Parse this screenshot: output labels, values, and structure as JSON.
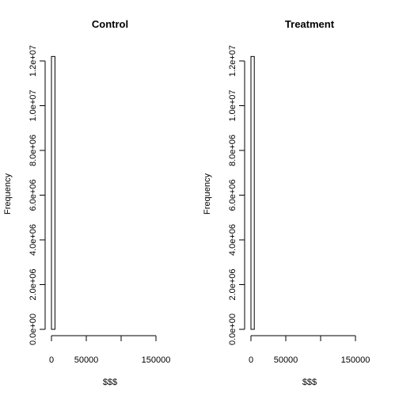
{
  "chart_data": [
    {
      "type": "bar",
      "title": "Control",
      "xlabel": "$$$",
      "ylabel": "Frequency",
      "xlim": [
        0,
        165000
      ],
      "ylim": [
        0,
        12250000
      ],
      "x_ticks": [
        0,
        50000,
        100000,
        150000
      ],
      "x_tick_labels": [
        "0",
        "50000",
        "",
        "150000"
      ],
      "y_ticks": [
        0,
        2000000,
        4000000,
        6000000,
        8000000,
        10000000,
        12000000
      ],
      "y_tick_labels": [
        "0.0e+00",
        "2.0e+06",
        "4.0e+06",
        "6.0e+06",
        "8.0e+06",
        "1.0e+07",
        "1.2e+07"
      ],
      "bins": [
        {
          "x0": 0,
          "x1": 5000,
          "value": 12200000
        },
        {
          "x0": 5000,
          "x1": 165000,
          "value": 0
        }
      ]
    },
    {
      "type": "bar",
      "title": "Treatment",
      "xlabel": "$$$",
      "ylabel": "Frequency",
      "xlim": [
        0,
        100000
      ],
      "ylim": [
        0,
        12250000
      ],
      "x_ticks": [
        0,
        50000,
        100000,
        150000
      ],
      "x_tick_labels": [
        "0",
        "50000",
        "",
        "150000"
      ],
      "y_ticks": [
        0,
        2000000,
        4000000,
        6000000,
        8000000,
        10000000,
        12000000
      ],
      "y_tick_labels": [
        "0.0e+00",
        "2.0e+06",
        "4.0e+06",
        "6.0e+06",
        "8.0e+06",
        "1.0e+07",
        "1.2e+07"
      ],
      "bins": [
        {
          "x0": 0,
          "x1": 5000,
          "value": 12200000
        },
        {
          "x0": 5000,
          "x1": 95000,
          "value": 0
        }
      ]
    }
  ]
}
